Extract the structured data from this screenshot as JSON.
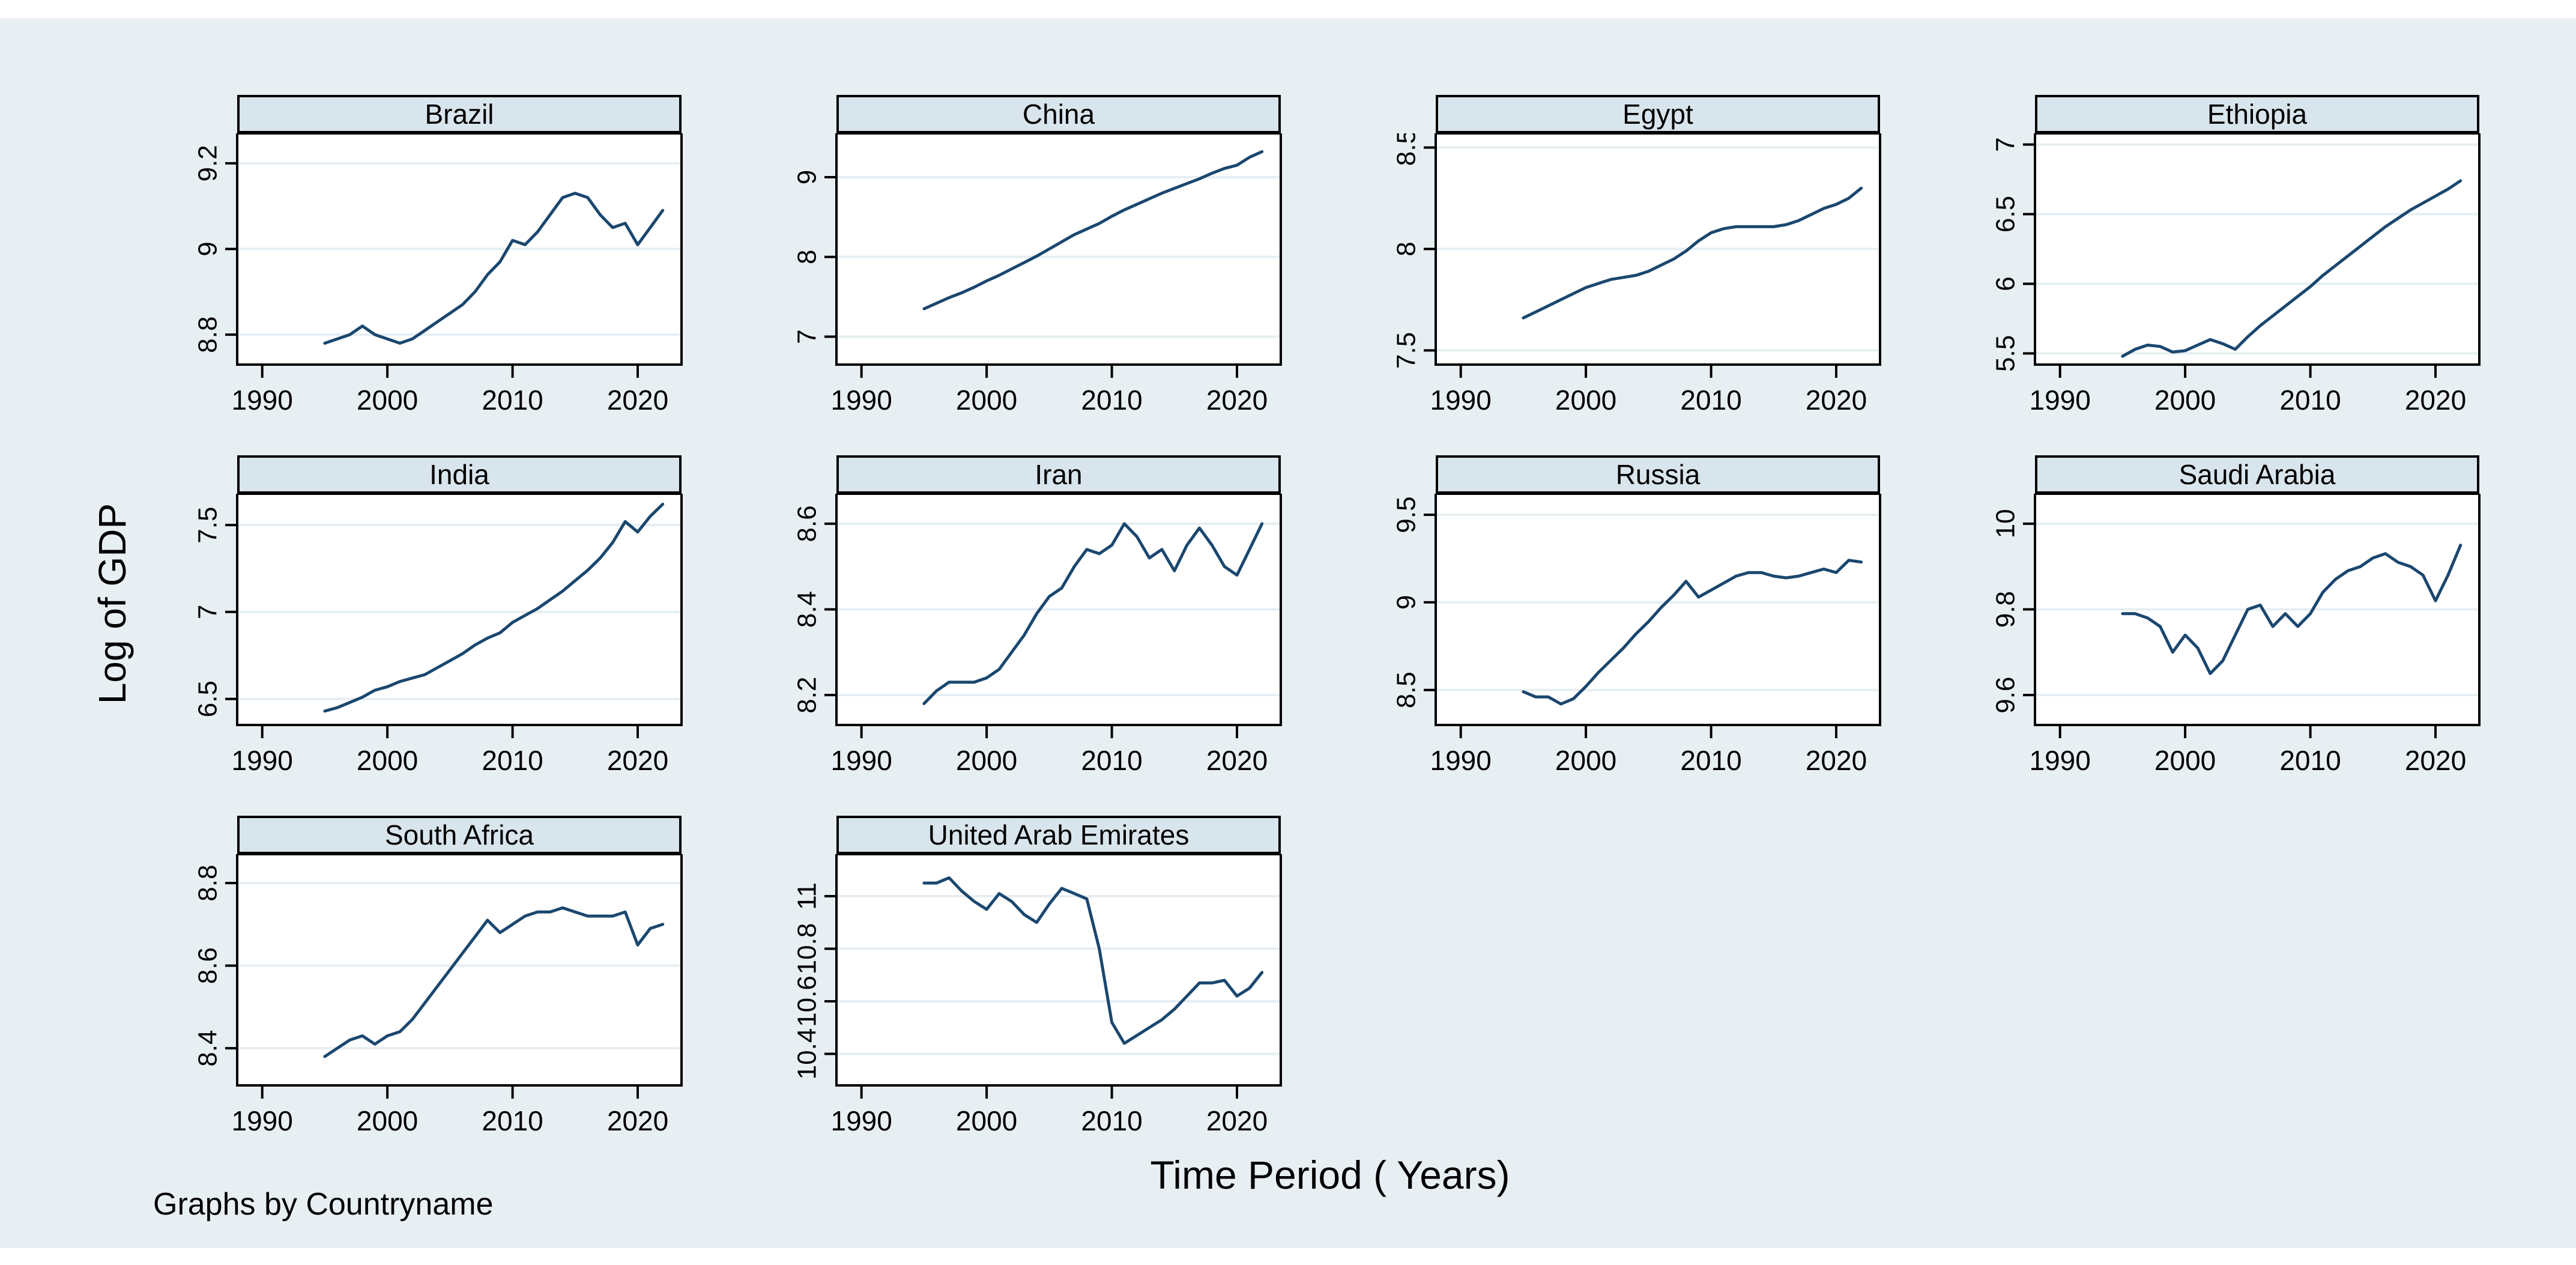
{
  "figure": {
    "ylabel": "Log of GDP",
    "xlabel": "Time Period ( Years)",
    "footnote": "Graphs by Countryname"
  },
  "colors": {
    "canvas": "#e8eff3",
    "panel_header_fill": "#d9e5ec",
    "plot_background": "#ffffff",
    "gridline": "#e6eef2",
    "frame": "#000000",
    "line": "#1a476f",
    "text": "#000000"
  },
  "chart_data": {
    "type": "line",
    "title": "",
    "xlabel": "Time Period ( Years)",
    "ylabel": "Log of GDP",
    "footnote": "Graphs by Countryname",
    "legend_position": "none",
    "grid": "horizontal",
    "xlim": [
      1988,
      2023.5
    ],
    "x_ticks": [
      1990,
      2000,
      2010,
      2020
    ],
    "years": [
      1995,
      1996,
      1997,
      1998,
      1999,
      2000,
      2001,
      2002,
      2003,
      2004,
      2005,
      2006,
      2007,
      2008,
      2009,
      2010,
      2011,
      2012,
      2013,
      2014,
      2015,
      2016,
      2017,
      2018,
      2019,
      2020,
      2021,
      2022
    ],
    "panels": [
      {
        "title": "Brazil",
        "y_ticks": [
          8.8,
          9,
          9.2
        ],
        "ylim": [
          8.73,
          9.27
        ],
        "values": [
          8.78,
          8.79,
          8.8,
          8.82,
          8.8,
          8.79,
          8.78,
          8.79,
          8.81,
          8.83,
          8.85,
          8.87,
          8.9,
          8.94,
          8.97,
          9.02,
          9.01,
          9.04,
          9.08,
          9.12,
          9.13,
          9.12,
          9.08,
          9.05,
          9.06,
          9.01,
          9.05,
          9.09
        ]
      },
      {
        "title": "China",
        "y_ticks": [
          7,
          8,
          9
        ],
        "ylim": [
          6.65,
          9.55
        ],
        "values": [
          7.35,
          7.42,
          7.49,
          7.55,
          7.62,
          7.7,
          7.77,
          7.85,
          7.93,
          8.01,
          8.1,
          8.19,
          8.28,
          8.35,
          8.42,
          8.51,
          8.59,
          8.66,
          8.73,
          8.8,
          8.86,
          8.92,
          8.98,
          9.05,
          9.11,
          9.15,
          9.25,
          9.32
        ]
      },
      {
        "title": "Egypt",
        "y_ticks": [
          7.5,
          8,
          8.5
        ],
        "ylim": [
          7.43,
          8.57
        ],
        "values": [
          7.66,
          7.69,
          7.72,
          7.75,
          7.78,
          7.81,
          7.83,
          7.85,
          7.86,
          7.87,
          7.89,
          7.92,
          7.95,
          7.99,
          8.04,
          8.08,
          8.1,
          8.11,
          8.11,
          8.11,
          8.11,
          8.12,
          8.14,
          8.17,
          8.2,
          8.22,
          8.25,
          8.3
        ]
      },
      {
        "title": "Ethiopia",
        "y_ticks": [
          5.5,
          6,
          6.5,
          7
        ],
        "ylim": [
          5.42,
          7.08
        ],
        "values": [
          5.48,
          5.53,
          5.56,
          5.55,
          5.51,
          5.52,
          5.56,
          5.6,
          5.57,
          5.53,
          5.62,
          5.7,
          5.77,
          5.84,
          5.91,
          5.98,
          6.06,
          6.13,
          6.2,
          6.27,
          6.34,
          6.41,
          6.47,
          6.53,
          6.58,
          6.63,
          6.68,
          6.74
        ]
      },
      {
        "title": "India",
        "y_ticks": [
          6.5,
          7,
          7.5
        ],
        "ylim": [
          6.35,
          7.68
        ],
        "values": [
          6.43,
          6.45,
          6.48,
          6.51,
          6.55,
          6.57,
          6.6,
          6.62,
          6.64,
          6.68,
          6.72,
          6.76,
          6.81,
          6.85,
          6.88,
          6.94,
          6.98,
          7.02,
          7.07,
          7.12,
          7.18,
          7.24,
          7.31,
          7.4,
          7.52,
          7.46,
          7.55,
          7.62
        ]
      },
      {
        "title": "Iran",
        "y_ticks": [
          8.2,
          8.4,
          8.6
        ],
        "ylim": [
          8.13,
          8.67
        ],
        "values": [
          8.18,
          8.21,
          8.23,
          8.23,
          8.23,
          8.24,
          8.26,
          8.3,
          8.34,
          8.39,
          8.43,
          8.45,
          8.5,
          8.54,
          8.53,
          8.55,
          8.6,
          8.57,
          8.52,
          8.54,
          8.49,
          8.55,
          8.59,
          8.55,
          8.5,
          8.48,
          8.54,
          8.6
        ]
      },
      {
        "title": "Russia",
        "y_ticks": [
          8.5,
          9,
          9.5
        ],
        "ylim": [
          8.3,
          9.62
        ],
        "values": [
          8.49,
          8.46,
          8.46,
          8.42,
          8.45,
          8.52,
          8.6,
          8.67,
          8.74,
          8.82,
          8.89,
          8.97,
          9.04,
          9.12,
          9.03,
          9.07,
          9.11,
          9.15,
          9.17,
          9.17,
          9.15,
          9.14,
          9.15,
          9.17,
          9.19,
          9.17,
          9.24,
          9.23
        ]
      },
      {
        "title": "Saudi Arabia",
        "y_ticks": [
          9.6,
          9.8,
          10
        ],
        "ylim": [
          9.53,
          10.07
        ],
        "values": [
          9.79,
          9.79,
          9.78,
          9.76,
          9.7,
          9.74,
          9.71,
          9.65,
          9.68,
          9.74,
          9.8,
          9.81,
          9.76,
          9.79,
          9.76,
          9.79,
          9.84,
          9.87,
          9.89,
          9.9,
          9.92,
          9.93,
          9.91,
          9.9,
          9.88,
          9.82,
          9.88,
          9.95
        ]
      },
      {
        "title": "South Africa",
        "y_ticks": [
          8.4,
          8.6,
          8.8
        ],
        "ylim": [
          8.31,
          8.87
        ],
        "values": [
          8.38,
          8.4,
          8.42,
          8.43,
          8.41,
          8.43,
          8.44,
          8.47,
          8.51,
          8.55,
          8.59,
          8.63,
          8.67,
          8.71,
          8.68,
          8.7,
          8.72,
          8.73,
          8.73,
          8.74,
          8.73,
          8.72,
          8.72,
          8.72,
          8.73,
          8.65,
          8.69,
          8.7
        ]
      },
      {
        "title": "United Arab Emirates",
        "y_ticks": [
          10.4,
          10.6,
          10.8,
          11
        ],
        "ylim": [
          10.28,
          11.16
        ],
        "values": [
          11.05,
          11.05,
          11.07,
          11.02,
          10.98,
          10.95,
          11.01,
          10.98,
          10.93,
          10.9,
          10.97,
          11.03,
          11.01,
          10.99,
          10.8,
          10.52,
          10.44,
          10.47,
          10.5,
          10.53,
          10.57,
          10.62,
          10.67,
          10.67,
          10.68,
          10.62,
          10.65,
          10.71
        ]
      }
    ]
  }
}
